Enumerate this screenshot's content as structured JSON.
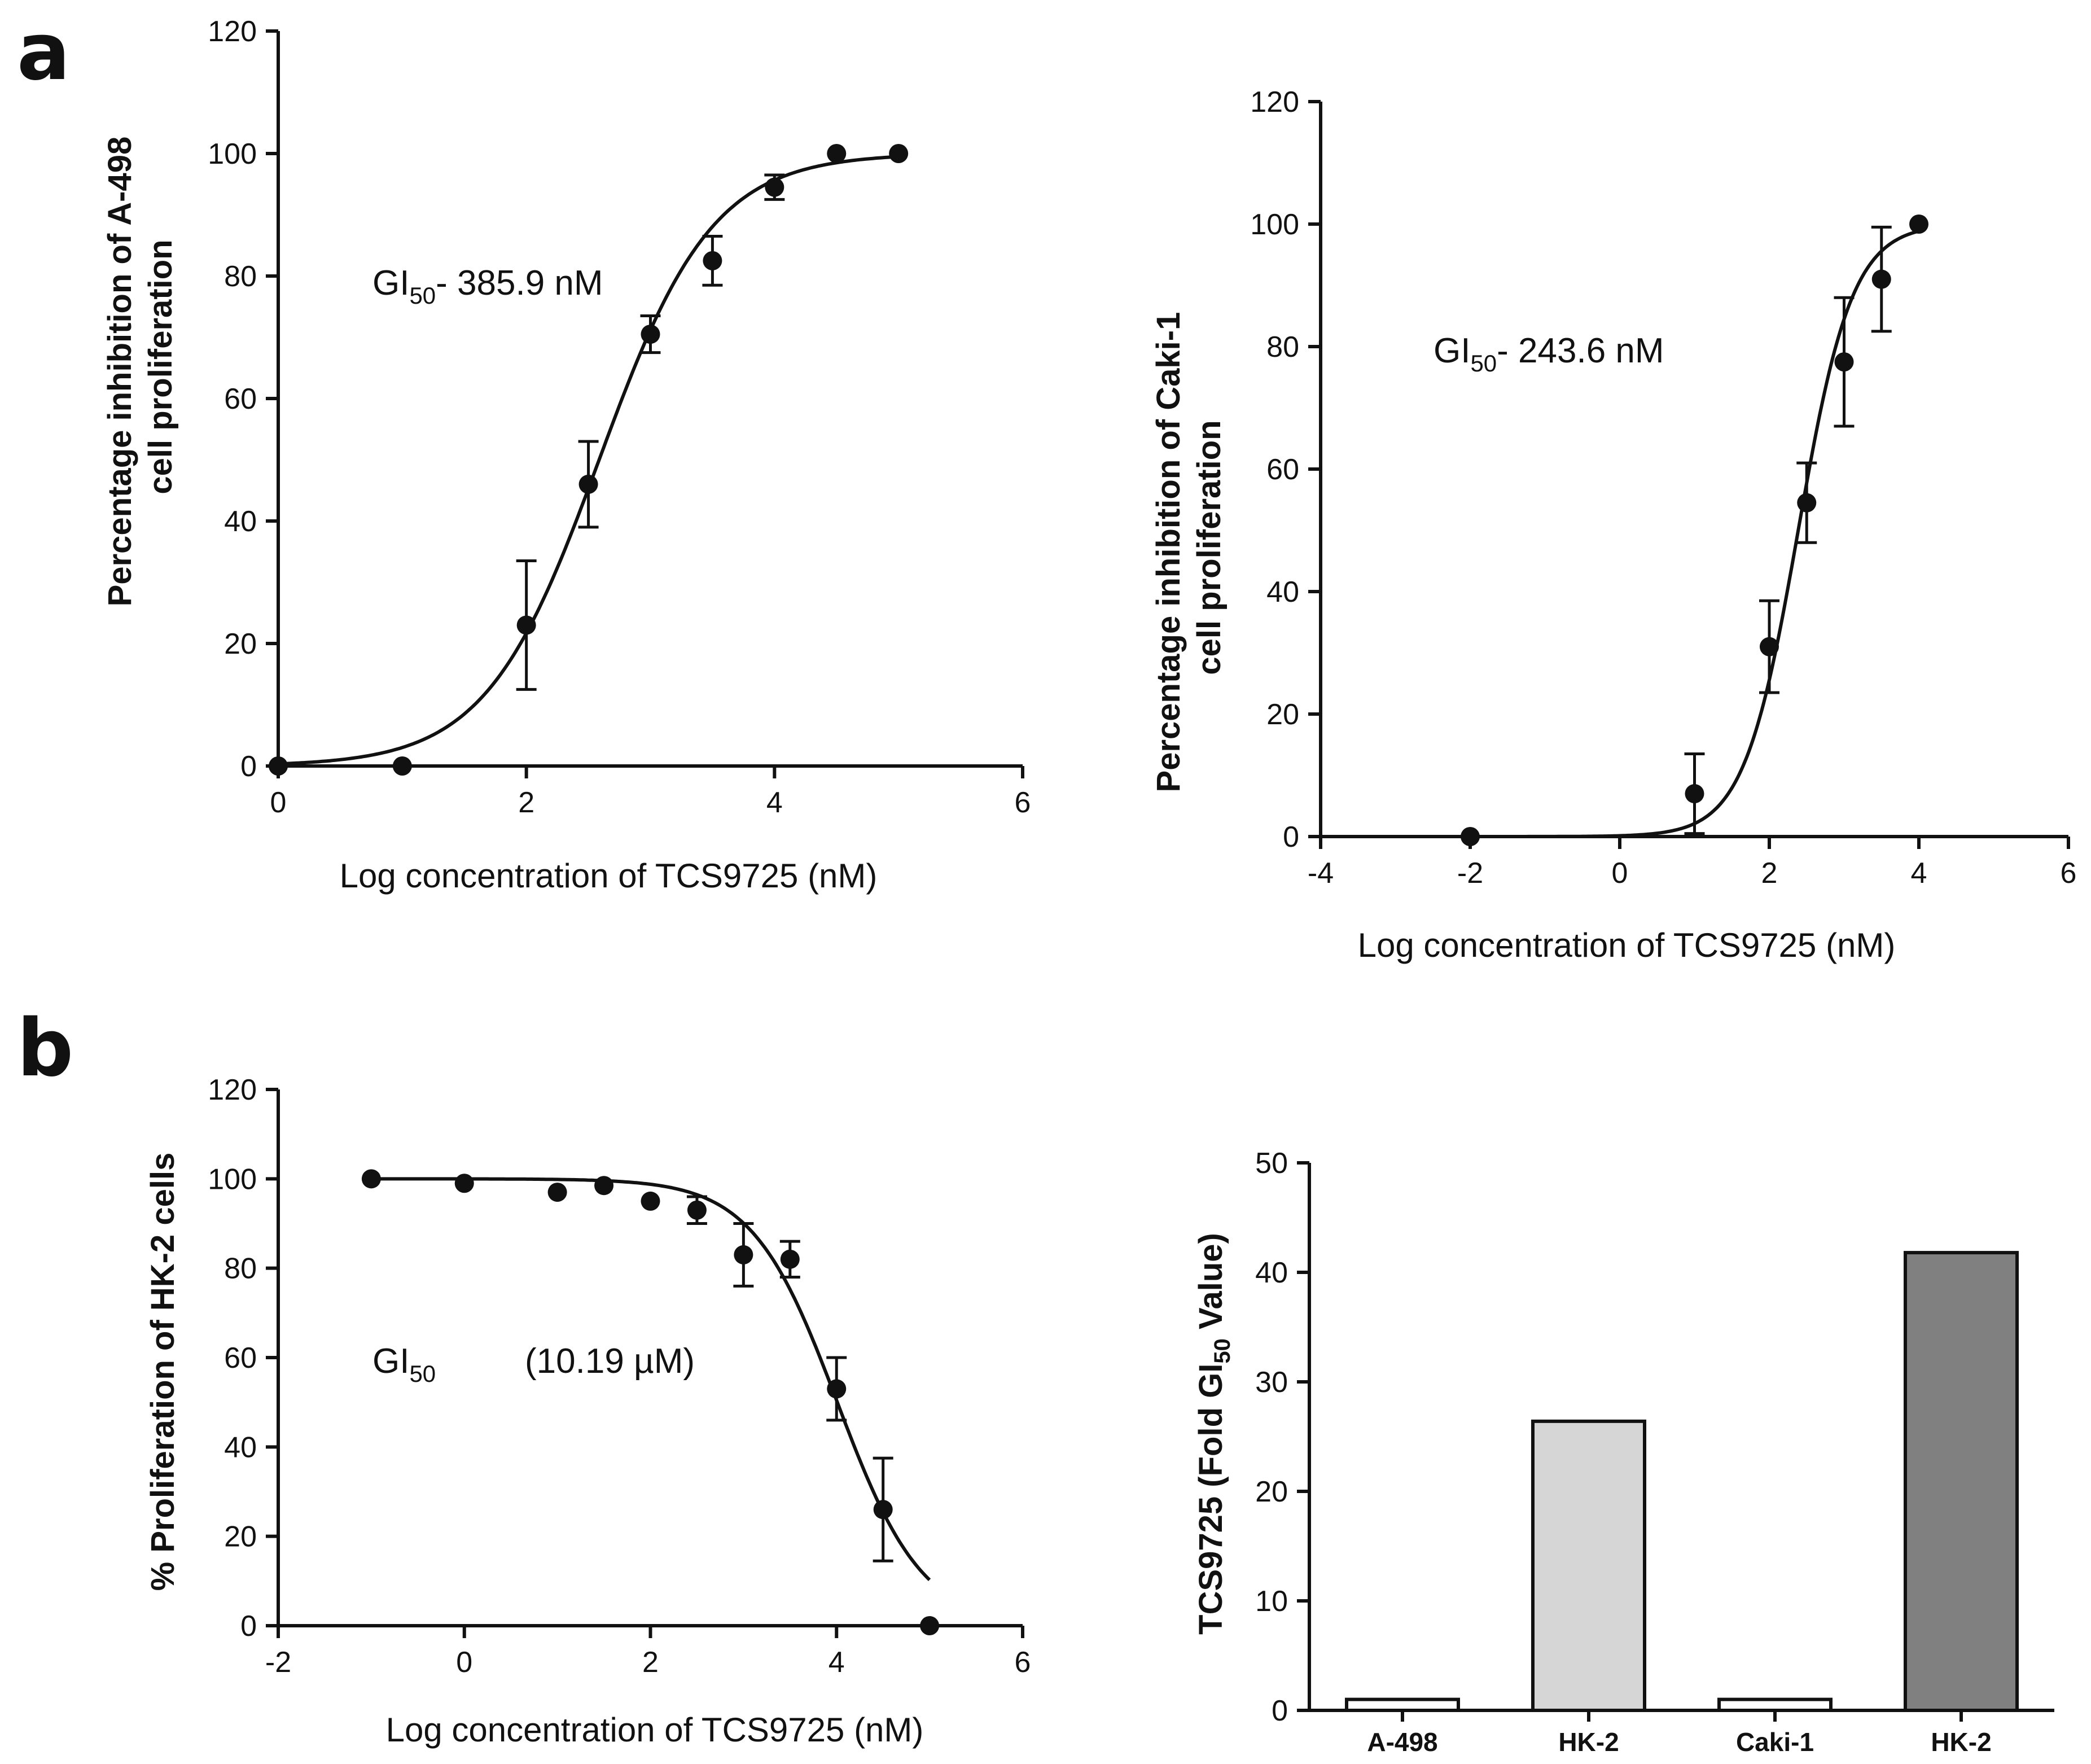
{
  "panel_letters": [
    "a",
    "b"
  ],
  "chart_data": [
    {
      "id": "a-left",
      "type": "scatter",
      "fit": "sigmoid-increasing",
      "x": [
        0,
        1,
        2,
        2.5,
        3,
        3.5,
        4,
        4.5,
        5
      ],
      "y": [
        0,
        0,
        23,
        46,
        70.5,
        82.5,
        94.5,
        100,
        100
      ],
      "err": [
        0,
        0,
        10.5,
        7,
        3,
        4,
        2,
        0,
        0
      ],
      "fit_params": {
        "bottom": 0,
        "top": 100,
        "log_ec50": 2.5865,
        "hill": 0.95
      },
      "xlim": [
        0,
        6
      ],
      "ylim": [
        0,
        120
      ],
      "xticks": [
        "0",
        "2",
        "4",
        "6"
      ],
      "yticks": [
        "0",
        "20",
        "40",
        "60",
        "80",
        "100",
        "120"
      ],
      "xlabel": "Log concentration of TCS9725 (nM)",
      "ylabel_lines": [
        "Percentage inhibition of A-498",
        "cell proliferation"
      ],
      "annotation": {
        "prefix": "GI",
        "sub": "50",
        "value": "- 385.9 nM"
      }
    },
    {
      "id": "a-right",
      "type": "scatter",
      "fit": "sigmoid-increasing",
      "x": [
        -2,
        1,
        2,
        2.5,
        3,
        3.5,
        4
      ],
      "y": [
        0,
        7,
        31,
        54.5,
        77.5,
        91,
        100
      ],
      "err": [
        0,
        6.5,
        7.5,
        6.5,
        10.5,
        8.5,
        0
      ],
      "fit_params": {
        "bottom": 0,
        "top": 100,
        "log_ec50": 2.3867,
        "hill": 1.2
      },
      "xlim": [
        -4,
        6
      ],
      "ylim": [
        0,
        120
      ],
      "xticks": [
        "-4",
        "-2",
        "0",
        "2",
        "4",
        "6"
      ],
      "yticks": [
        "0",
        "20",
        "40",
        "60",
        "80",
        "100",
        "120"
      ],
      "xlabel": "Log concentration of TCS9725 (nM)",
      "ylabel_lines": [
        "Percentage inhibition of Caki-1",
        "cell proliferation"
      ],
      "annotation": {
        "prefix": "GI",
        "sub": "50",
        "value": "- 243.6 nM"
      }
    },
    {
      "id": "b-left",
      "type": "scatter",
      "fit": "sigmoid-decreasing",
      "x": [
        -1,
        0,
        1,
        1.5,
        2,
        2.5,
        3,
        3.5,
        4,
        4.5,
        5
      ],
      "y": [
        100,
        99,
        97,
        98.5,
        95,
        93,
        83,
        82,
        53,
        26,
        0
      ],
      "err": [
        0,
        0,
        0,
        0,
        0,
        3,
        7,
        4,
        7,
        11.5,
        0
      ],
      "fit_params": {
        "bottom": 0,
        "top": 100,
        "log_ec50": 4.0082,
        "hill": 0.95
      },
      "xlim": [
        -2,
        6
      ],
      "ylim": [
        0,
        120
      ],
      "xticks": [
        "-2",
        "0",
        "2",
        "4",
        "6"
      ],
      "yticks": [
        "0",
        "20",
        "40",
        "60",
        "80",
        "100",
        "120"
      ],
      "xlabel": "Log concentration of TCS9725 (nM)",
      "ylabel": "% Proliferation of HK-2 cells",
      "annotation": {
        "prefix": "GI",
        "sub": "50",
        "value": "(10.19 µM)"
      }
    },
    {
      "id": "b-right",
      "type": "bar",
      "categories": [
        "A-498",
        "HK-2",
        "Caki-1",
        "HK-2"
      ],
      "values": [
        1,
        26.4,
        1,
        41.8
      ],
      "bar_colors": [
        "#ffffff",
        "#d6d6d6",
        "#ffffff",
        "#808080"
      ],
      "ylim": [
        0,
        50
      ],
      "yticks": [
        "0",
        "10",
        "20",
        "30",
        "40",
        "50"
      ],
      "ylabel": {
        "prefix": "TCS9725 (Fold GI",
        "sub": "50",
        "suffix": " Value)"
      }
    }
  ]
}
